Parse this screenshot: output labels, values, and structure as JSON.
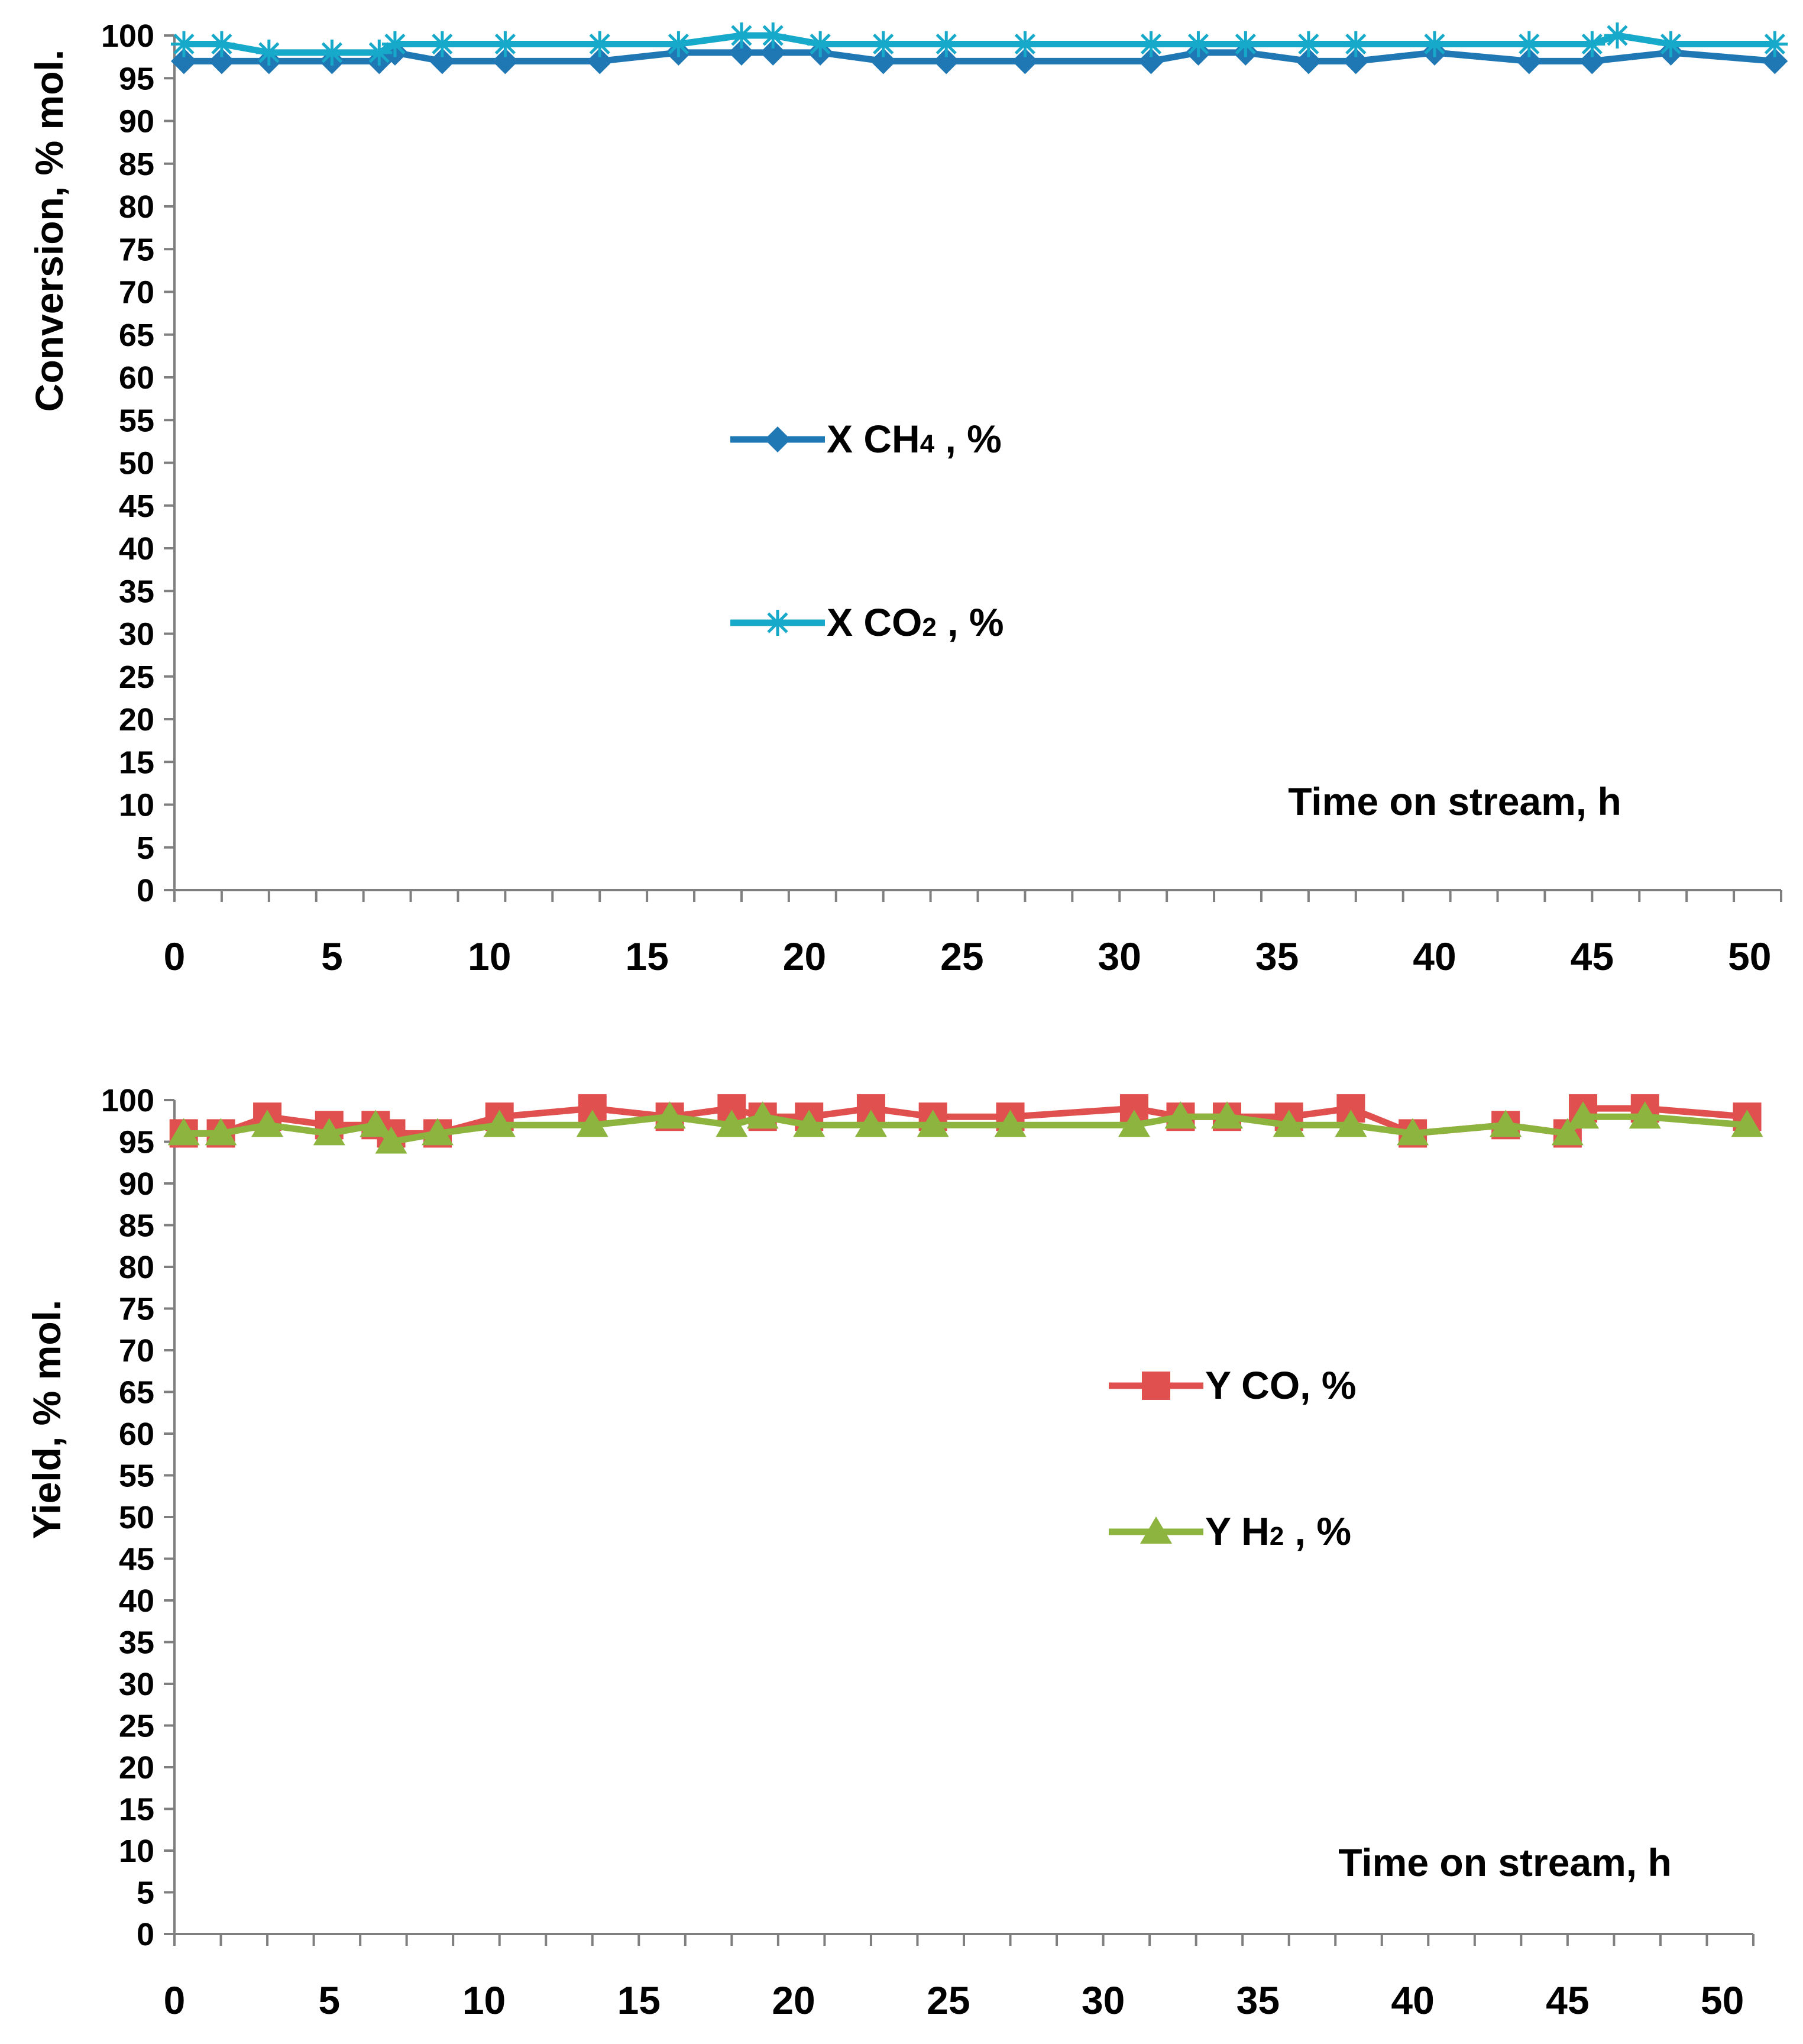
{
  "chart_data": [
    {
      "type": "line",
      "title": "",
      "xlabel": "Time on stream, h",
      "ylabel": "Conversion, % mol.",
      "xlim": [
        0,
        51
      ],
      "ylim": [
        0,
        100
      ],
      "xticks": [
        0,
        5,
        10,
        15,
        20,
        25,
        30,
        35,
        40,
        45,
        50
      ],
      "yticks": [
        0,
        5,
        10,
        15,
        20,
        25,
        30,
        35,
        40,
        45,
        50,
        55,
        60,
        65,
        70,
        75,
        80,
        85,
        90,
        95,
        100
      ],
      "legend_position": "center",
      "series": [
        {
          "name": "X CH4",
          "legend_label": {
            "prefix": "X CH",
            "sub": "4",
            "suffix": " , %"
          },
          "color": "#1f77b4",
          "marker": "diamond",
          "x": [
            0.3,
            1.5,
            3,
            5,
            6.5,
            7,
            8.5,
            10.5,
            13.5,
            16,
            18,
            19,
            20.5,
            22.5,
            24.5,
            27,
            31,
            32.5,
            34,
            36,
            37.5,
            40,
            43,
            45,
            47.5,
            50.8
          ],
          "y": [
            97,
            97,
            97,
            97,
            97,
            98,
            97,
            97,
            97,
            98,
            98,
            98,
            98,
            97,
            97,
            97,
            97,
            98,
            98,
            97,
            97,
            98,
            97,
            97,
            98,
            97
          ]
        },
        {
          "name": "X CO2",
          "legend_label": {
            "prefix": "X CO",
            "sub": "2",
            "suffix": " , %"
          },
          "color": "#17a9c9",
          "marker": "asterisk",
          "x": [
            0.3,
            1.5,
            3,
            5,
            6.5,
            7,
            8.5,
            10.5,
            13.5,
            16,
            18,
            19,
            20.5,
            22.5,
            24.5,
            27,
            31,
            32.5,
            34,
            36,
            37.5,
            40,
            43,
            45,
            45.8,
            47.5,
            50.8
          ],
          "y": [
            99,
            99,
            98,
            98,
            98,
            99,
            99,
            99,
            99,
            99,
            100,
            100,
            99,
            99,
            99,
            99,
            99,
            99,
            99,
            99,
            99,
            99,
            99,
            99,
            100,
            99,
            99
          ]
        }
      ]
    },
    {
      "type": "line",
      "title": "",
      "xlabel": "Time on stream, h",
      "ylabel": "Yield, % mol.",
      "xlim": [
        0,
        51
      ],
      "ylim": [
        0,
        100
      ],
      "xticks": [
        0,
        5,
        10,
        15,
        20,
        25,
        30,
        35,
        40,
        45,
        50
      ],
      "yticks": [
        0,
        5,
        10,
        15,
        20,
        25,
        30,
        35,
        40,
        45,
        50,
        55,
        60,
        65,
        70,
        75,
        80,
        85,
        90,
        95,
        100
      ],
      "legend_position": "center-right",
      "series": [
        {
          "name": "Y CO",
          "legend_label": {
            "prefix": "Y CO",
            "sub": "",
            "suffix": ", %"
          },
          "color": "#e0504e",
          "marker": "square",
          "x": [
            0.3,
            1.5,
            3,
            5,
            6.5,
            7,
            8.5,
            10.5,
            13.5,
            16,
            18,
            19,
            20.5,
            22.5,
            24.5,
            27,
            31,
            32.5,
            34,
            36,
            38,
            40,
            43,
            45,
            45.5,
            47.5,
            50.8
          ],
          "y": [
            96,
            96,
            98,
            97,
            97,
            96,
            96,
            98,
            99,
            98,
            99,
            98,
            98,
            99,
            98,
            98,
            99,
            98,
            98,
            98,
            99,
            96,
            97,
            96,
            99,
            99,
            98
          ]
        },
        {
          "name": "Y H2",
          "legend_label": {
            "prefix": "Y H",
            "sub": "2",
            "suffix": " , %"
          },
          "color": "#8db43f",
          "marker": "triangle",
          "x": [
            0.3,
            1.5,
            3,
            5,
            6.5,
            7,
            8.5,
            10.5,
            13.5,
            16,
            18,
            19,
            20.5,
            22.5,
            24.5,
            27,
            31,
            32.5,
            34,
            36,
            38,
            40,
            43,
            45,
            45.5,
            47.5,
            50.8
          ],
          "y": [
            96,
            96,
            97,
            96,
            97,
            95,
            96,
            97,
            97,
            98,
            97,
            98,
            97,
            97,
            97,
            97,
            97,
            98,
            98,
            97,
            97,
            96,
            97,
            96,
            98,
            98,
            97
          ]
        }
      ]
    }
  ]
}
